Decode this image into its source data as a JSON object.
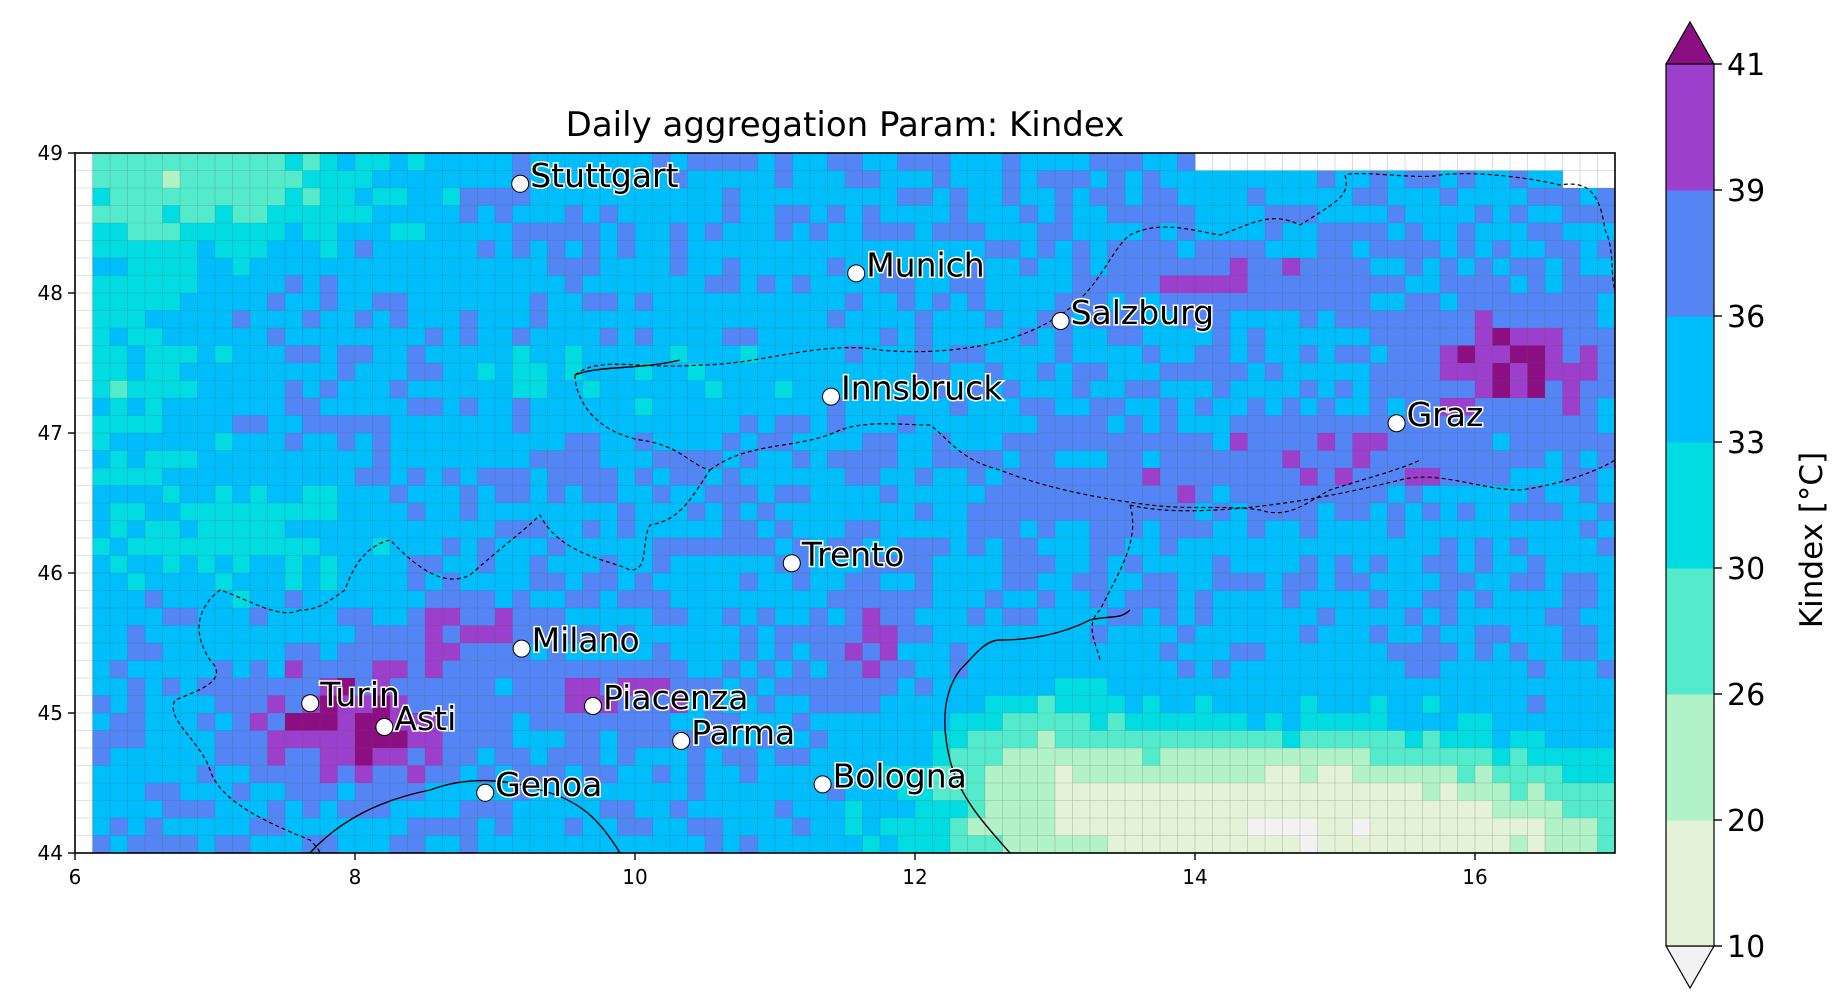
{
  "map": {
    "title": "Daily aggregation Param: Kindex",
    "extent": {
      "lon": [
        6,
        17
      ],
      "lat": [
        44,
        49
      ]
    },
    "x_ticks": [
      "6",
      "8",
      "10",
      "12",
      "14",
      "16"
    ],
    "y_ticks": [
      "44",
      "45",
      "46",
      "47",
      "48",
      "49"
    ],
    "grid_resolution_deg": 0.125,
    "cities": [
      {
        "name": "Stuttgart",
        "lon": 9.18,
        "lat": 48.78
      },
      {
        "name": "Munich",
        "lon": 11.58,
        "lat": 48.14
      },
      {
        "name": "Salzburg",
        "lon": 13.04,
        "lat": 47.8
      },
      {
        "name": "Innsbruck",
        "lon": 11.4,
        "lat": 47.26
      },
      {
        "name": "Graz",
        "lon": 15.44,
        "lat": 47.07
      },
      {
        "name": "Trento",
        "lon": 11.12,
        "lat": 46.07
      },
      {
        "name": "Milano",
        "lon": 9.19,
        "lat": 45.46
      },
      {
        "name": "Turin",
        "lon": 7.68,
        "lat": 45.07
      },
      {
        "name": "Asti",
        "lon": 8.21,
        "lat": 44.9
      },
      {
        "name": "Piacenza",
        "lon": 9.7,
        "lat": 45.05
      },
      {
        "name": "Parma",
        "lon": 10.33,
        "lat": 44.8
      },
      {
        "name": "Genoa",
        "lon": 8.93,
        "lat": 44.43
      },
      {
        "name": "Bologna",
        "lon": 11.34,
        "lat": 44.49
      }
    ]
  },
  "colorbar": {
    "title": "Kindex  [°C]",
    "ticks": [
      "10",
      "20",
      "26",
      "30",
      "33",
      "36",
      "39",
      "41"
    ],
    "levels": [
      10,
      20,
      26,
      30,
      33,
      36,
      39,
      41
    ],
    "colors": [
      "#e4f3d8",
      "#b2f2c8",
      "#54ebcc",
      "#00dce2",
      "#00bdfb",
      "#5485f5",
      "#9b3fcc"
    ],
    "under_color": "#f2f2f2",
    "over_color": "#8b0f82"
  }
}
